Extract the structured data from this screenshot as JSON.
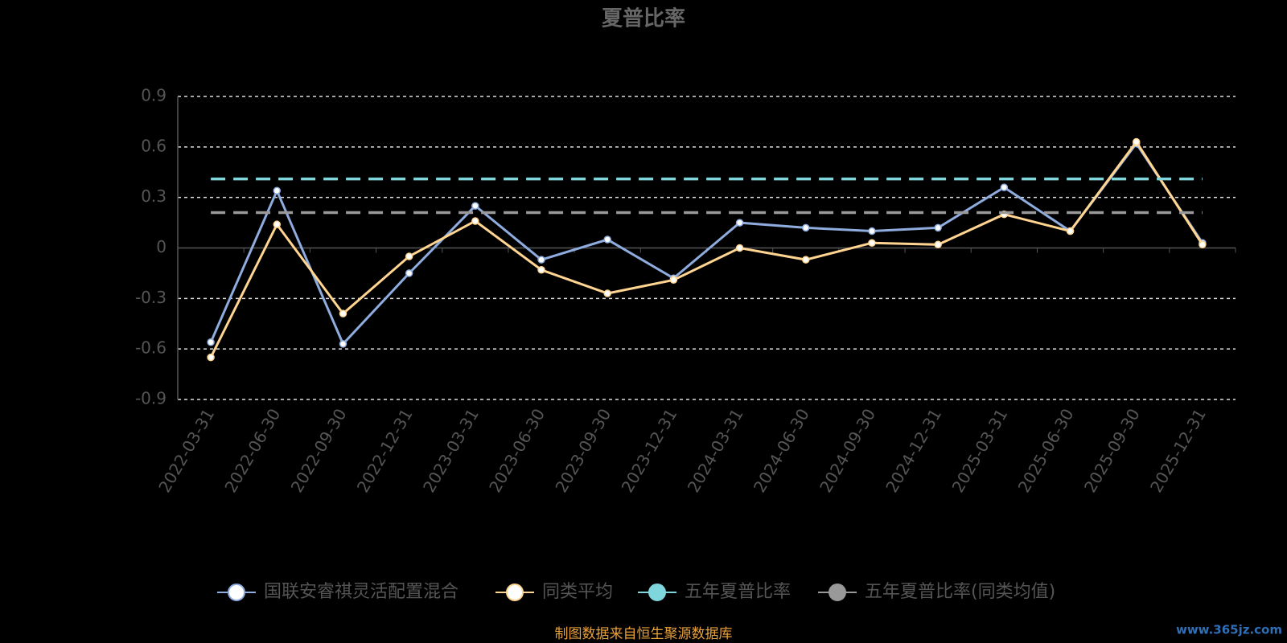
{
  "chart_data": {
    "type": "line",
    "title": "夏普比率",
    "categories": [
      "2022-03-31",
      "2022-06-30",
      "2022-09-30",
      "2022-12-31",
      "2023-03-31",
      "2023-06-30",
      "2023-09-30",
      "2023-12-31",
      "2024-03-31",
      "2024-06-30",
      "2024-09-30",
      "2024-12-31",
      "2025-03-31",
      "2025-06-30",
      "2025-09-30",
      "2025-12-31"
    ],
    "series": [
      {
        "name": "国联安睿祺灵活配置混合",
        "color": "#8eacde",
        "values": [
          -0.56,
          0.34,
          -0.57,
          -0.15,
          0.25,
          -0.07,
          0.05,
          -0.18,
          0.15,
          0.12,
          0.1,
          0.12,
          0.36,
          0.1,
          0.62,
          0.03
        ]
      },
      {
        "name": "同类平均",
        "color": "#ffd591",
        "values": [
          -0.65,
          0.14,
          -0.39,
          -0.05,
          0.16,
          -0.13,
          -0.27,
          -0.19,
          0.0,
          -0.07,
          0.03,
          0.02,
          0.2,
          0.1,
          0.63,
          0.02
        ]
      },
      {
        "name": "五年夏普比率",
        "color": "#7fd6dc",
        "dashed": true,
        "values": [
          0.41,
          0.41,
          0.41,
          0.41,
          0.41,
          0.41,
          0.41,
          0.41,
          0.41,
          0.41,
          0.41,
          0.41,
          0.41,
          0.41,
          0.41,
          0.41
        ]
      },
      {
        "name": "五年夏普比率(同类均值)",
        "color": "#999999",
        "dashed": true,
        "values": [
          0.21,
          0.21,
          0.21,
          0.21,
          0.21,
          0.21,
          0.21,
          0.21,
          0.21,
          0.21,
          0.21,
          0.21,
          0.21,
          0.21,
          0.21,
          0.21
        ]
      }
    ],
    "ylim": [
      -0.9,
      0.9
    ],
    "yticks": [
      -0.9,
      -0.6,
      -0.3,
      0,
      0.3,
      0.6,
      0.9
    ],
    "grid": true,
    "legend": "bottom",
    "source": "制图数据来自恒生聚源数据库",
    "watermark": "www.365jz.com"
  }
}
